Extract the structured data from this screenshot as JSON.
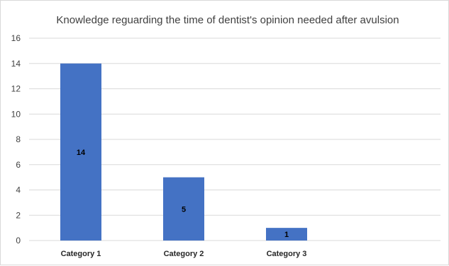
{
  "chart_data": {
    "type": "bar",
    "title": "Knowledge reguarding the time of dentist's opinion needed after avulsion",
    "categories": [
      "Category 1",
      "Category 2",
      "Category 3"
    ],
    "values": [
      14,
      5,
      1
    ],
    "data_labels": [
      "14",
      "5",
      "1"
    ],
    "ylim": [
      0,
      16
    ],
    "yticks": [
      0,
      2,
      4,
      6,
      8,
      10,
      12,
      14,
      16
    ],
    "xlabel": "",
    "ylabel": "",
    "grid": true,
    "legend": "none",
    "bar_color": "#4472c4",
    "grid_color": "#d9d9d9"
  }
}
